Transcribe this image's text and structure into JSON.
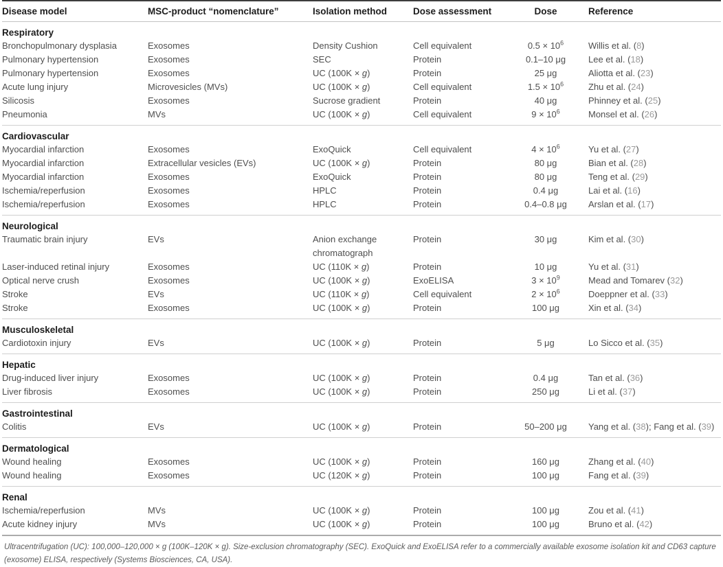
{
  "table": {
    "columns": [
      "Disease model",
      "MSC-product “nomenclature”",
      "Isolation method",
      "Dose assessment",
      "Dose",
      "Reference"
    ],
    "sections": [
      {
        "name": "Respiratory",
        "rows": [
          {
            "disease": "Bronchopulmonary dysplasia",
            "product": "Exosomes",
            "isolation": "Density Cushion",
            "assessment": "Cell equivalent",
            "dose": {
              "value": "0.5 × 10",
              "exp": "6"
            },
            "refs": [
              {
                "authors": "Willis et al.",
                "num": "8"
              }
            ]
          },
          {
            "disease": "Pulmonary hypertension",
            "product": "Exosomes",
            "isolation": "SEC",
            "assessment": "Protein",
            "dose": {
              "value": "0.1–10 μg"
            },
            "refs": [
              {
                "authors": "Lee et al.",
                "num": "18"
              }
            ]
          },
          {
            "disease": "Pulmonary hypertension",
            "product": "Exosomes",
            "isolation": "UC (100K × g)",
            "assessment": "Protein",
            "dose": {
              "value": "25 μg"
            },
            "refs": [
              {
                "authors": "Aliotta et al.",
                "num": "23"
              }
            ]
          },
          {
            "disease": "Acute lung injury",
            "product": "Microvesicles (MVs)",
            "isolation": "UC (100K × g)",
            "assessment": "Cell equivalent",
            "dose": {
              "value": "1.5 × 10",
              "exp": "6"
            },
            "refs": [
              {
                "authors": "Zhu et al.",
                "num": "24"
              }
            ]
          },
          {
            "disease": "Silicosis",
            "product": "Exosomes",
            "isolation": "Sucrose gradient",
            "assessment": "Protein",
            "dose": {
              "value": "40 μg"
            },
            "refs": [
              {
                "authors": "Phinney et al.",
                "num": "25"
              }
            ]
          },
          {
            "disease": "Pneumonia",
            "product": "MVs",
            "isolation": "UC (100K × g)",
            "assessment": "Cell equivalent",
            "dose": {
              "value": "9 × 10",
              "exp": "6"
            },
            "refs": [
              {
                "authors": "Monsel et al.",
                "num": "26"
              }
            ]
          }
        ]
      },
      {
        "name": "Cardiovascular",
        "rows": [
          {
            "disease": "Myocardial infarction",
            "product": "Exosomes",
            "isolation": "ExoQuick",
            "assessment": "Cell equivalent",
            "dose": {
              "value": "4 × 10",
              "exp": "6"
            },
            "refs": [
              {
                "authors": "Yu et al.",
                "num": "27"
              }
            ]
          },
          {
            "disease": "Myocardial infarction",
            "product": "Extracellular vesicles (EVs)",
            "isolation": "UC (100K × g)",
            "assessment": "Protein",
            "dose": {
              "value": "80 μg"
            },
            "refs": [
              {
                "authors": "Bian et al.",
                "num": "28"
              }
            ]
          },
          {
            "disease": "Myocardial infarction",
            "product": "Exosomes",
            "isolation": "ExoQuick",
            "assessment": "Protein",
            "dose": {
              "value": "80 μg"
            },
            "refs": [
              {
                "authors": "Teng et al.",
                "num": "29"
              }
            ]
          },
          {
            "disease": "Ischemia/reperfusion",
            "product": "Exosomes",
            "isolation": "HPLC",
            "assessment": "Protein",
            "dose": {
              "value": "0.4 μg"
            },
            "refs": [
              {
                "authors": "Lai et al.",
                "num": "16"
              }
            ]
          },
          {
            "disease": "Ischemia/reperfusion",
            "product": "Exosomes",
            "isolation": "HPLC",
            "assessment": "Protein",
            "dose": {
              "value": "0.4–0.8 μg"
            },
            "refs": [
              {
                "authors": "Arslan et al.",
                "num": "17"
              }
            ]
          }
        ]
      },
      {
        "name": "Neurological",
        "rows": [
          {
            "disease": "Traumatic brain injury",
            "product": "EVs",
            "isolation": "Anion exchange chromatograph",
            "assessment": "Protein",
            "dose": {
              "value": "30 μg"
            },
            "refs": [
              {
                "authors": "Kim et al.",
                "num": "30"
              }
            ]
          },
          {
            "disease": "Laser-induced retinal injury",
            "product": "Exosomes",
            "isolation": "UC (110K × g)",
            "assessment": "Protein",
            "dose": {
              "value": "10 μg"
            },
            "refs": [
              {
                "authors": "Yu et al.",
                "num": "31"
              }
            ]
          },
          {
            "disease": "Optical nerve crush",
            "product": "Exosomes",
            "isolation": "UC (100K × g)",
            "assessment": "ExoELISA",
            "dose": {
              "value": "3 × 10",
              "exp": "9"
            },
            "refs": [
              {
                "authors": "Mead and Tomarev",
                "num": "32"
              }
            ]
          },
          {
            "disease": "Stroke",
            "product": "EVs",
            "isolation": "UC (110K × g)",
            "assessment": "Cell equivalent",
            "dose": {
              "value": "2 × 10",
              "exp": "6"
            },
            "refs": [
              {
                "authors": "Doeppner et al.",
                "num": "33"
              }
            ]
          },
          {
            "disease": "Stroke",
            "product": "Exosomes",
            "isolation": "UC (100K × g)",
            "assessment": "Protein",
            "dose": {
              "value": "100 μg"
            },
            "refs": [
              {
                "authors": "Xin et al.",
                "num": "34"
              }
            ]
          }
        ]
      },
      {
        "name": "Musculoskeletal",
        "rows": [
          {
            "disease": "Cardiotoxin injury",
            "product": "EVs",
            "isolation": "UC (100K × g)",
            "assessment": "Protein",
            "dose": {
              "value": "5 μg"
            },
            "refs": [
              {
                "authors": "Lo Sicco et al.",
                "num": "35"
              }
            ]
          }
        ]
      },
      {
        "name": "Hepatic",
        "rows": [
          {
            "disease": "Drug-induced liver injury",
            "product": "Exosomes",
            "isolation": "UC (100K × g)",
            "assessment": "Protein",
            "dose": {
              "value": "0.4 μg"
            },
            "refs": [
              {
                "authors": "Tan et al.",
                "num": "36"
              }
            ]
          },
          {
            "disease": "Liver fibrosis",
            "product": "Exosomes",
            "isolation": "UC (100K × g)",
            "assessment": "Protein",
            "dose": {
              "value": "250 μg"
            },
            "refs": [
              {
                "authors": "Li et al.",
                "num": "37"
              }
            ]
          }
        ]
      },
      {
        "name": "Gastrointestinal",
        "rows": [
          {
            "disease": "Colitis",
            "product": "EVs",
            "isolation": "UC (100K × g)",
            "assessment": "Protein",
            "dose": {
              "value": "50–200 μg"
            },
            "refs": [
              {
                "authors": "Yang et al.",
                "num": "38"
              },
              {
                "authors": "Fang et al.",
                "num": "39"
              }
            ]
          }
        ]
      },
      {
        "name": "Dermatological",
        "rows": [
          {
            "disease": "Wound healing",
            "product": "Exosomes",
            "isolation": "UC (100K × g)",
            "assessment": "Protein",
            "dose": {
              "value": "160 μg"
            },
            "refs": [
              {
                "authors": "Zhang et al.",
                "num": "40"
              }
            ]
          },
          {
            "disease": "Wound healing",
            "product": "Exosomes",
            "isolation": "UC (120K × g)",
            "assessment": "Protein",
            "dose": {
              "value": "100 μg"
            },
            "refs": [
              {
                "authors": "Fang et al.",
                "num": "39"
              }
            ]
          }
        ]
      },
      {
        "name": "Renal",
        "rows": [
          {
            "disease": "Ischemia/reperfusion",
            "product": "MVs",
            "isolation": "UC (100K × g)",
            "assessment": "Protein",
            "dose": {
              "value": "100 μg"
            },
            "refs": [
              {
                "authors": "Zou et al.",
                "num": "41"
              }
            ]
          },
          {
            "disease": "Acute kidney injury",
            "product": "MVs",
            "isolation": "UC (100K × g)",
            "assessment": "Protein",
            "dose": {
              "value": "100 μg"
            },
            "refs": [
              {
                "authors": "Bruno et al.",
                "num": "42"
              }
            ]
          }
        ]
      }
    ]
  },
  "footnote": "Ultracentrifugation (UC): 100,000–120,000 × g (100K–120K × g). Size-exclusion chromatography (SEC). ExoQuick and ExoELISA refer to a commercially available exosome isolation kit and CD63 capture (exosome) ELISA, respectively (Systems Biosciences, CA, USA).",
  "colors": {
    "header_text": "#1c1c1c",
    "body_text": "#4e4e4e",
    "citation_number": "#9c9c9c",
    "section_divider": "#cfcfcf",
    "top_border": "#3d3d3d",
    "bottom_border": "#ababab"
  }
}
